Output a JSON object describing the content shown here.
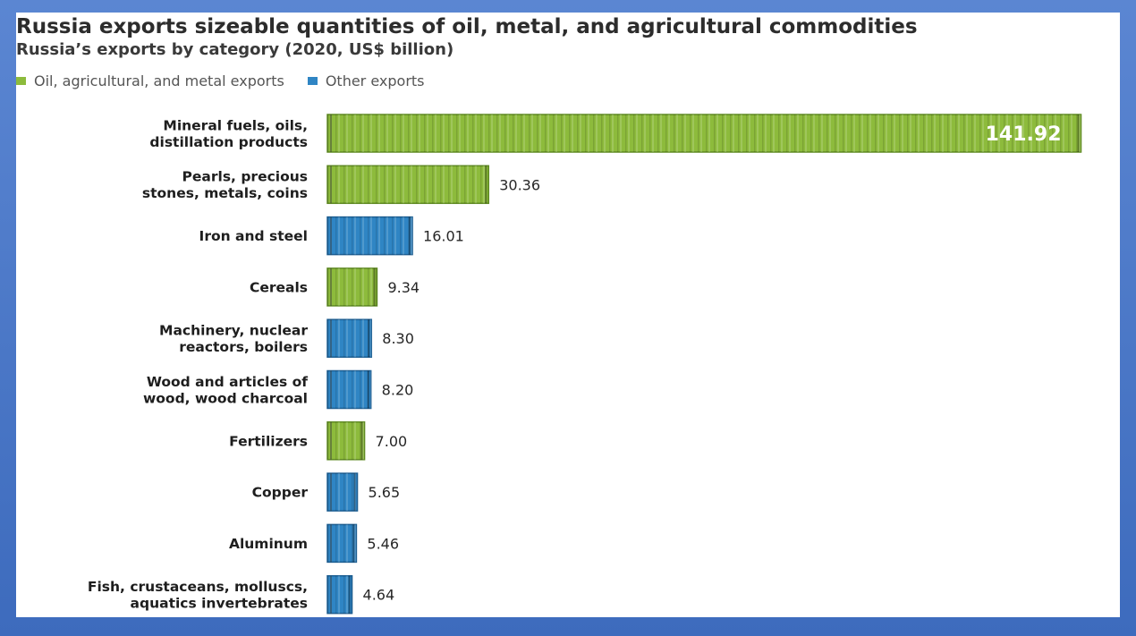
{
  "title": "Russia exports sizeable quantities of oil, metal, and agricultural commodities",
  "subtitle": "Russia’s exports by category (2020, US$ billion)",
  "legend": [
    {
      "label": "Oil, agricultural, and metal exports",
      "color": "#8dbb3c"
    },
    {
      "label": "Other exports",
      "color": "#2f85c4"
    }
  ],
  "chart_data": {
    "type": "bar",
    "orientation": "horizontal",
    "title": "Russia exports sizeable quantities of oil, metal, and agricultural commodities",
    "subtitle": "Russia’s exports by category (2020, US$ billion)",
    "categories": [
      [
        "Mineral fuels, oils,",
        "distillation products"
      ],
      [
        "Pearls, precious",
        "stones, metals, coins"
      ],
      [
        "Iron and steel"
      ],
      [
        "Cereals"
      ],
      [
        "Machinery, nuclear",
        "reactors, boilers"
      ],
      [
        "Wood and articles of",
        "wood, wood charcoal"
      ],
      [
        "Fertilizers"
      ],
      [
        "Copper"
      ],
      [
        "Aluminum"
      ],
      [
        "Fish, crustaceans, molluscs,",
        "aquatics invertebrates"
      ]
    ],
    "values": [
      141.92,
      30.36,
      16.01,
      9.34,
      8.3,
      8.2,
      7.0,
      5.65,
      5.46,
      4.64
    ],
    "value_labels": [
      "141.92",
      "30.36",
      "16.01",
      "9.34",
      "8.30",
      "8.20",
      "7.00",
      "5.65",
      "5.46",
      "4.64"
    ],
    "groups": [
      "Oil, agricultural, and metal exports",
      "Oil, agricultural, and metal exports",
      "Other exports",
      "Oil, agricultural, and metal exports",
      "Other exports",
      "Other exports",
      "Oil, agricultural, and metal exports",
      "Other exports",
      "Other exports",
      "Other exports"
    ],
    "xlim": [
      0,
      142
    ],
    "legend_position": "top-left",
    "grid": false,
    "colors": {
      "Oil, agricultural, and metal exports": "#8dbb3c",
      "Other exports": "#2f85c4"
    }
  }
}
